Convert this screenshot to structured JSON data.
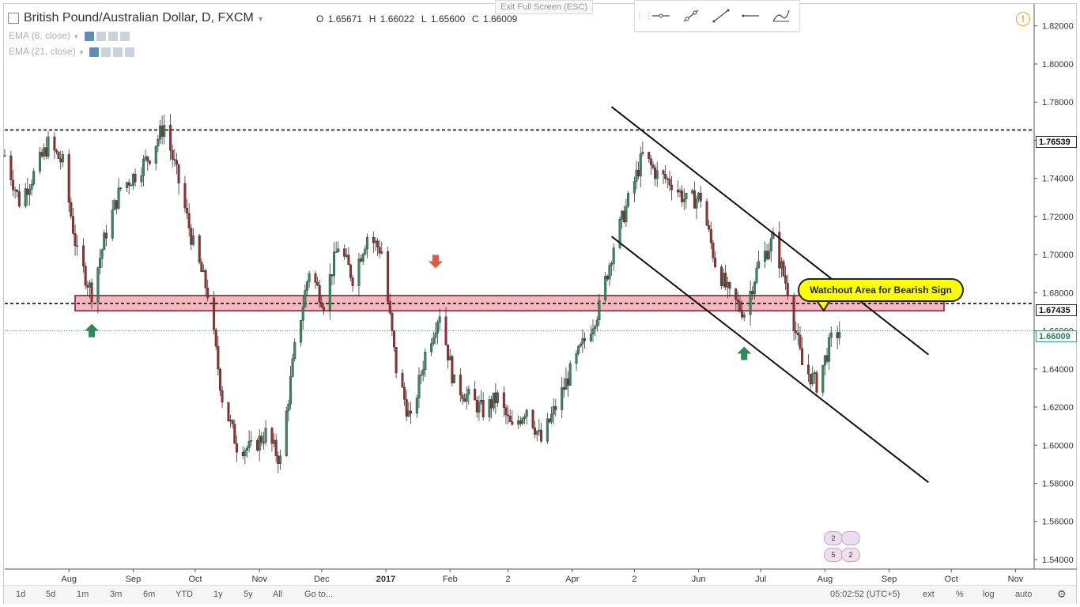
{
  "header": {
    "symbol_title": "British Pound/Australian Dollar, D, FXCM",
    "ohlc": {
      "o_label": "O",
      "o": "1.65671",
      "h_label": "H",
      "h": "1.66022",
      "l_label": "L",
      "l": "1.65600",
      "c_label": "C",
      "c": "1.66009"
    },
    "indicators": [
      {
        "label": "EMA (8, close)"
      },
      {
        "label": "EMA (21, close)"
      }
    ],
    "exit_fullscreen": "Exit Full Screen (ESC)",
    "warning_symbol": "!"
  },
  "drawing_toolbar": {
    "tools": [
      "horizontal-ray-icon",
      "trend-line-icon",
      "line-icon",
      "horizontal-line-icon",
      "curve-icon"
    ]
  },
  "annotation": {
    "callout_text": "Watchout Area for Bearish Sign",
    "zone": {
      "price_low": 1.6705,
      "price_high": 1.6785,
      "color": "#f4a0a8",
      "border": "#8b2030"
    },
    "resistance_level": "1.76539",
    "support_level": "1.67435",
    "current_price": "1.66009"
  },
  "markers": [
    {
      "type": "up-arrow",
      "color": "#2e8b57",
      "date": "2016-08-12",
      "price": 1.66
    },
    {
      "type": "down-arrow",
      "color": "#e05a47",
      "date": "2017-01-25",
      "price": 1.6965
    },
    {
      "type": "up-arrow",
      "color": "#2e8b57",
      "date": "2017-06-23",
      "price": 1.648
    }
  ],
  "event_badges": [
    {
      "label": "2"
    },
    {
      "label": "5"
    },
    {
      "label": "2"
    }
  ],
  "chart_data": {
    "type": "candlestick",
    "title": "British Pound/Australian Dollar, D, FXCM",
    "y_axis": {
      "ticks": [
        "1.82000",
        "1.80000",
        "1.78000",
        "1.76000",
        "1.74000",
        "1.72000",
        "1.70000",
        "1.68000",
        "1.66000",
        "1.64000",
        "1.62000",
        "1.60000",
        "1.58000",
        "1.56000",
        "1.54000"
      ],
      "range": [
        1.535,
        1.8315
      ]
    },
    "x_axis": {
      "ticks": [
        "Aug",
        "Sep",
        "Oct",
        "Nov",
        "Dec",
        "2017",
        "Feb",
        "2",
        "Apr",
        "2",
        "Jun",
        "Jul",
        "Aug",
        "Sep",
        "Oct",
        "Nov"
      ],
      "bold_ticks": [
        "2017"
      ]
    },
    "close_path": [
      [
        "2016-07-01",
        1.752
      ],
      [
        "2016-07-08",
        1.728
      ],
      [
        "2016-07-15",
        1.742
      ],
      [
        "2016-07-22",
        1.758
      ],
      [
        "2016-07-29",
        1.748
      ],
      [
        "2016-08-05",
        1.7
      ],
      [
        "2016-08-12",
        1.68
      ],
      [
        "2016-08-19",
        1.712
      ],
      [
        "2016-08-26",
        1.735
      ],
      [
        "2016-09-02",
        1.742
      ],
      [
        "2016-09-09",
        1.752
      ],
      [
        "2016-09-16",
        1.768
      ],
      [
        "2016-09-23",
        1.738
      ],
      [
        "2016-09-30",
        1.705
      ],
      [
        "2016-10-07",
        1.68
      ],
      [
        "2016-10-14",
        1.625
      ],
      [
        "2016-10-21",
        1.6
      ],
      [
        "2016-10-28",
        1.598
      ],
      [
        "2016-11-04",
        1.606
      ],
      [
        "2016-11-11",
        1.592
      ],
      [
        "2016-11-18",
        1.65
      ],
      [
        "2016-11-25",
        1.692
      ],
      [
        "2016-12-02",
        1.675
      ],
      [
        "2016-12-09",
        1.705
      ],
      [
        "2016-12-16",
        1.688
      ],
      [
        "2016-12-23",
        1.71
      ],
      [
        "2016-12-30",
        1.702
      ],
      [
        "2017-01-06",
        1.64
      ],
      [
        "2017-01-13",
        1.612
      ],
      [
        "2017-01-20",
        1.648
      ],
      [
        "2017-01-27",
        1.67
      ],
      [
        "2017-02-03",
        1.632
      ],
      [
        "2017-02-10",
        1.625
      ],
      [
        "2017-02-17",
        1.618
      ],
      [
        "2017-02-24",
        1.625
      ],
      [
        "2017-03-03",
        1.608
      ],
      [
        "2017-03-10",
        1.62
      ],
      [
        "2017-03-17",
        1.602
      ],
      [
        "2017-03-24",
        1.62
      ],
      [
        "2017-03-31",
        1.638
      ],
      [
        "2017-04-07",
        1.655
      ],
      [
        "2017-04-14",
        1.672
      ],
      [
        "2017-04-21",
        1.705
      ],
      [
        "2017-04-28",
        1.728
      ],
      [
        "2017-05-05",
        1.752
      ],
      [
        "2017-05-12",
        1.742
      ],
      [
        "2017-05-19",
        1.738
      ],
      [
        "2017-05-26",
        1.728
      ],
      [
        "2017-06-02",
        1.73
      ],
      [
        "2017-06-09",
        1.696
      ],
      [
        "2017-06-16",
        1.678
      ],
      [
        "2017-06-23",
        1.67
      ],
      [
        "2017-06-30",
        1.695
      ],
      [
        "2017-07-07",
        1.708
      ],
      [
        "2017-07-14",
        1.682
      ],
      [
        "2017-07-21",
        1.642
      ],
      [
        "2017-07-28",
        1.632
      ],
      [
        "2017-08-04",
        1.655
      ],
      [
        "2017-08-08",
        1.66
      ]
    ],
    "trendlines": [
      {
        "from": [
          "2017-04-20",
          1.7775
        ],
        "to": [
          "2017-09-20",
          1.6475
        ]
      },
      {
        "from": [
          "2017-04-20",
          1.7095
        ],
        "to": [
          "2017-09-20",
          1.5805
        ]
      }
    ],
    "horizontal_lines": [
      1.76539,
      1.67435
    ],
    "grid": true
  },
  "bottom_bar": {
    "timeframes": [
      "1d",
      "5d",
      "1m",
      "3m",
      "6m",
      "YTD",
      "1y",
      "5y",
      "All"
    ],
    "goto": "Go to...",
    "clock": "05:02:52 (UTC+5)",
    "options": [
      "ext",
      "%",
      "log",
      "auto"
    ]
  }
}
